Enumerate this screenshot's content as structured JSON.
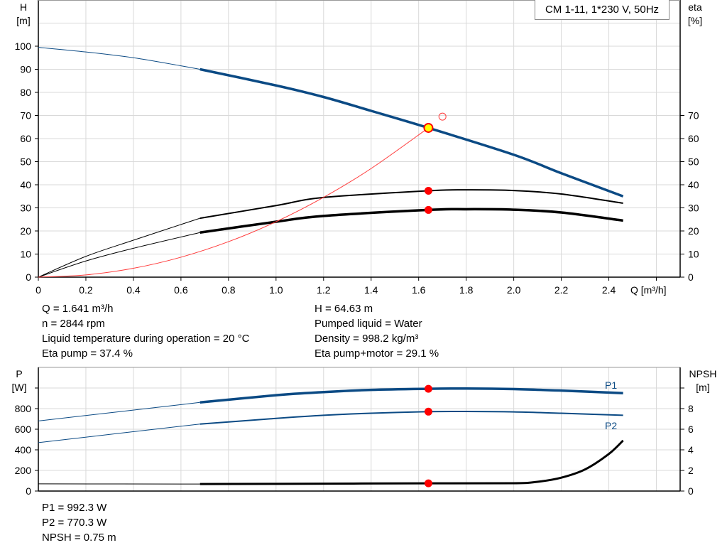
{
  "title_box": "CM 1-11, 1*230 V, 50Hz",
  "info_top_left": [
    "Q = 1.641 m³/h",
    "n = 2844 rpm",
    "Liquid temperature during operation = 20 °C",
    "Eta pump = 37.4 %"
  ],
  "info_top_right": [
    "H = 64.63 m",
    "Pumped liquid = Water",
    "Density = 998.2 kg/m³",
    "Eta pump+motor = 29.1 %"
  ],
  "info_bottom": [
    "P1 = 992.3 W",
    "P2 = 770.3 W",
    "NPSH = 0.75 m"
  ],
  "colors": {
    "head": "#0b4a84",
    "power": "#0b4a84",
    "eta": "#000000",
    "system": "#ff3b3b",
    "point": "#ff0000",
    "duty_fill": "#ffff00",
    "grid": "#d9d9d9"
  },
  "chart_data": [
    {
      "type": "line",
      "xlabel": "Q [m³/h]",
      "ylabel_left": "H\n[m]",
      "ylabel_right": "eta\n[%]",
      "xlim": [
        0,
        2.7
      ],
      "ylim": [
        0,
        120
      ],
      "x_ticks": [
        0,
        0.2,
        0.4,
        0.6,
        0.8,
        1.0,
        1.2,
        1.4,
        1.6,
        1.8,
        2.0,
        2.2,
        2.4
      ],
      "x_tick_labels": [
        "0",
        "0.2",
        "0.4",
        "0.6",
        "0.8",
        "1.0",
        "1.2",
        "1.4",
        "1.6",
        "1.8",
        "2.0",
        "2.2",
        "2.4"
      ],
      "y_left_ticks": [
        0,
        10,
        20,
        30,
        40,
        50,
        60,
        70,
        80,
        90,
        100
      ],
      "y_right_ticks": [
        0,
        10,
        20,
        30,
        40,
        50,
        60,
        70
      ],
      "grid": true,
      "series": [
        {
          "key": "H",
          "axis": "left",
          "x": [
            0,
            0.2,
            0.4,
            0.6,
            0.68,
            1.0,
            1.2,
            1.4,
            1.641,
            2.0,
            2.2,
            2.46
          ],
          "y": [
            99.5,
            97.5,
            95,
            91.5,
            90,
            83,
            78,
            72,
            64.63,
            53,
            45,
            35
          ],
          "thin_until": 0.68
        },
        {
          "key": "eta_pump",
          "axis": "right",
          "x": [
            0,
            0.2,
            0.4,
            0.68,
            1.0,
            1.2,
            1.641,
            1.8,
            2.0,
            2.2,
            2.46
          ],
          "y": [
            0,
            9,
            16,
            25.5,
            31,
            34.5,
            37.4,
            37.8,
            37.5,
            36,
            32
          ],
          "thin_until": 0.68
        },
        {
          "key": "eta_pump_motor",
          "axis": "right",
          "x": [
            0,
            0.2,
            0.4,
            0.68,
            1.0,
            1.2,
            1.641,
            1.8,
            2.0,
            2.2,
            2.46
          ],
          "y": [
            0,
            7,
            12.5,
            19.3,
            24,
            26.5,
            29.1,
            29.4,
            29.2,
            28,
            24.5
          ],
          "thin_until": 0.68
        },
        {
          "key": "system",
          "axis": "left",
          "x": [
            0,
            0.2,
            0.4,
            0.6,
            0.8,
            1.0,
            1.2,
            1.4,
            1.641
          ],
          "y": [
            0,
            0.96,
            3.84,
            8.64,
            15.36,
            24,
            34.56,
            47.04,
            64.63
          ]
        }
      ],
      "points": [
        {
          "x": 1.641,
          "y": 64.63,
          "kind": "duty"
        },
        {
          "x": 1.7,
          "y": 69.5,
          "kind": "open"
        },
        {
          "x": 1.641,
          "y": 37.4,
          "kind": "dot"
        },
        {
          "x": 1.641,
          "y": 29.1,
          "kind": "dot"
        }
      ]
    },
    {
      "type": "line",
      "ylabel_left": "P\n[W]",
      "ylabel_right": "NPSH\n[m]",
      "xlim": [
        0,
        2.7
      ],
      "ylim": [
        0,
        1200
      ],
      "y_left_ticks": [
        0,
        200,
        400,
        600,
        800
      ],
      "y_right_ticks": [
        0,
        2,
        4,
        6,
        8
      ],
      "y_right_extra_tick": 10,
      "y_right_extra_label": "",
      "grid": true,
      "series": [
        {
          "key": "P1",
          "name": "P1",
          "axis": "left",
          "x": [
            0,
            0.68,
            1.0,
            1.2,
            1.4,
            1.641,
            1.8,
            2.0,
            2.2,
            2.46
          ],
          "y": [
            680,
            860,
            930,
            960,
            982,
            992.3,
            995,
            990,
            975,
            950
          ],
          "thin_until": 0.68
        },
        {
          "key": "P2",
          "name": "P2",
          "axis": "left",
          "x": [
            0,
            0.68,
            1.0,
            1.2,
            1.4,
            1.641,
            1.8,
            2.0,
            2.2,
            2.46
          ],
          "y": [
            470,
            650,
            705,
            735,
            755,
            770.3,
            772,
            768,
            755,
            735
          ],
          "thin_until": 0.68
        },
        {
          "key": "NPSH",
          "axis": "right",
          "x": [
            0,
            0.68,
            1.0,
            1.641,
            2.0,
            2.1,
            2.2,
            2.3,
            2.4,
            2.46
          ],
          "y": [
            0.7,
            0.68,
            0.7,
            0.75,
            0.76,
            0.9,
            1.3,
            2.1,
            3.6,
            4.9
          ],
          "thin_until": 0.68
        }
      ],
      "points": [
        {
          "x": 1.641,
          "y": 992.3
        },
        {
          "x": 1.641,
          "y": 770.3
        },
        {
          "x": 1.641,
          "y": 75
        }
      ]
    }
  ]
}
